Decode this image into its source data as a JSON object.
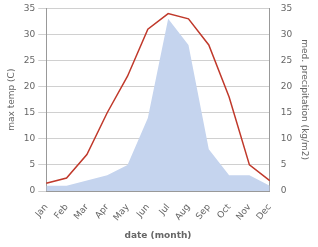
{
  "chart_data": {
    "type": "line",
    "categories": [
      "Jan",
      "Feb",
      "Mar",
      "Apr",
      "May",
      "Jun",
      "Jul",
      "Aug",
      "Sep",
      "Oct",
      "Nov",
      "Dec"
    ],
    "series": [
      {
        "type": "area",
        "color": "#c5d4ee",
        "axis": "y2",
        "values": [
          1,
          1,
          2,
          3,
          5,
          14,
          33,
          28,
          8,
          3,
          3,
          1
        ]
      },
      {
        "type": "line",
        "color": "#c0392b",
        "values": [
          1.5,
          2.5,
          7,
          15,
          22,
          31,
          34,
          33,
          28,
          18,
          5,
          2
        ]
      }
    ],
    "xlabel": "date (month)",
    "ylabel": "max temp (C)",
    "y2label": "med. precipitation (kg/m2)",
    "ylim": [
      0,
      35
    ],
    "yticks": [
      0,
      5,
      10,
      15,
      20,
      25,
      30,
      35
    ],
    "y2lim": [
      0,
      35
    ],
    "y2ticks": [
      0,
      5,
      10,
      15,
      20,
      25,
      30,
      35
    ],
    "grid": true
  }
}
